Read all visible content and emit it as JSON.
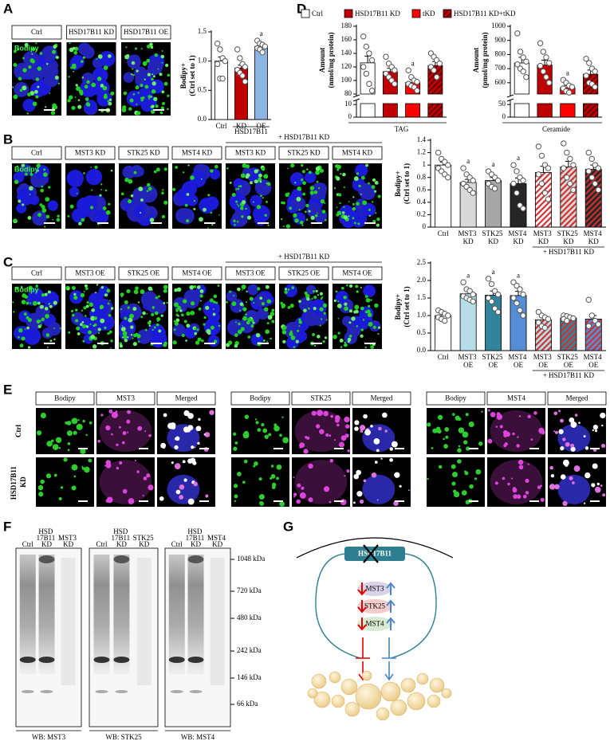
{
  "panels": {
    "A": {
      "label": "A",
      "image_headers": [
        "Ctrl",
        "HSD17B11 KD",
        "HSD17B11 OE"
      ],
      "stain": "Bodipy"
    },
    "B": {
      "label": "B",
      "image_headers": [
        "Ctrl",
        "MST3 KD",
        "STK25 KD",
        "MST4 KD",
        "MST3 KD",
        "STK25 KD",
        "MST4 KD"
      ],
      "group_label": "+ HSD17B11 KD",
      "stain": "Bodipy"
    },
    "C": {
      "label": "C",
      "image_headers": [
        "Ctrl",
        "MST3 OE",
        "STK25 OE",
        "MST4 OE",
        "MST3 OE",
        "STK25 OE",
        "MST4 OE"
      ],
      "group_label": "+ HSD17B11 KD",
      "stain": "Bodipy"
    },
    "D": {
      "label": "D",
      "legend": [
        {
          "name": "Ctrl",
          "color": "#ffffff"
        },
        {
          "name": "HSD17B11 KD",
          "color": "#c00000"
        },
        {
          "name": "tKD",
          "color": "#ff0000"
        },
        {
          "name": "HSD17B11 KD+tKD",
          "color": "#c00000",
          "hatch": true,
          "hatch_color": "#6b0000"
        }
      ]
    },
    "E": {
      "label": "E",
      "groups": [
        [
          "Bodipy",
          "MST3",
          "Merged"
        ],
        [
          "Bodipy",
          "STK25",
          "Merged"
        ],
        [
          "Bodipy",
          "MST4",
          "Merged"
        ]
      ],
      "rows": [
        "Ctrl",
        "HSD17B11 KD"
      ]
    },
    "F": {
      "label": "F",
      "lanes": [
        [
          "Ctrl",
          "HSD 17B11 KD",
          "MST3 KD"
        ],
        [
          "Ctrl",
          "HSD 17B11 KD",
          "STK25 KD"
        ],
        [
          "Ctrl",
          "HSD 17B11 KD",
          "MST4 KD"
        ]
      ],
      "markers": [
        "1048 kDa",
        "720 kDa",
        "480 kDa",
        "242 kDa",
        "146 kDa",
        "66 kDa"
      ],
      "blots": [
        "WB: MST3",
        "WB: STK25",
        "WB: MST4"
      ]
    },
    "G": {
      "label": "G",
      "nodes": [
        "HSD17B11",
        "MST3",
        "STK25",
        "MST4"
      ]
    }
  },
  "chart_data": [
    {
      "type": "bar",
      "ylabel": [
        "Bodipy+",
        "(Ctrl set to 1)"
      ],
      "categories": [
        "Ctrl",
        "KD",
        "OE"
      ],
      "group_label": "HSD17B11",
      "values": [
        1.0,
        0.88,
        1.25
      ],
      "errors": [
        0.07,
        0.05,
        0.03
      ],
      "colors": [
        "#ffffff",
        "#c00000",
        "#8eb4e3"
      ],
      "points": [
        [
          1.3,
          1.2,
          1.05,
          1.0,
          0.95,
          0.7,
          0.7
        ],
        [
          1.2,
          1.05,
          0.95,
          0.9,
          0.85,
          0.8,
          0.75,
          0.65
        ],
        [
          1.35,
          1.3,
          1.28,
          1.25,
          1.22,
          1.2,
          1.15
        ]
      ],
      "annotations": [
        null,
        null,
        "a"
      ],
      "ylim": [
        0,
        1.5
      ],
      "yticks": [
        {
          "value": 0,
          "label": "0.0"
        },
        0.5,
        {
          "value": 1,
          "label": "1.0"
        },
        1.5
      ]
    },
    {
      "type": "bar",
      "ylabel": [
        "Bodipy+",
        "(Ctrl set to 1)"
      ],
      "categories": [
        "Ctrl",
        "MST3 KD",
        "STK25 KD",
        "MST4 KD",
        "MST3 KD",
        "STK25 KD",
        "MST4 KD"
      ],
      "group_label": "+ HSD17B11 KD",
      "values": [
        1.0,
        0.72,
        0.75,
        0.7,
        0.88,
        0.97,
        0.93
      ],
      "errors": [
        0.05,
        0.05,
        0.05,
        0.09,
        0.1,
        0.09,
        0.07
      ],
      "colors": [
        "#ffffff",
        "#d9d9d9",
        "#a6a6a6",
        "#262626",
        "#ffffff",
        "#d9d9d9",
        "#262626"
      ],
      "hatch": [
        false,
        false,
        false,
        false,
        true,
        true,
        true
      ],
      "hatch_color": "#d03030",
      "points": [
        [
          1.2,
          1.1,
          1.05,
          1.0,
          0.95,
          0.9,
          0.85,
          0.8
        ],
        [
          0.95,
          0.85,
          0.8,
          0.75,
          0.7,
          0.65,
          0.6,
          0.55
        ],
        [
          0.9,
          0.85,
          0.8,
          0.75,
          0.7,
          0.65,
          0.62
        ],
        [
          1.0,
          0.9,
          0.8,
          0.75,
          0.7,
          0.55,
          0.35,
          0.3
        ],
        [
          1.3,
          1.15,
          1.0,
          0.95,
          0.85,
          0.7,
          0.55,
          0.45
        ],
        [
          1.35,
          1.2,
          1.1,
          1.0,
          0.95,
          0.8,
          0.7,
          0.6
        ],
        [
          1.2,
          1.1,
          1.0,
          0.95,
          0.9,
          0.8,
          0.7,
          0.6
        ]
      ],
      "annotations": [
        null,
        "a",
        "a",
        "a",
        null,
        null,
        null
      ],
      "ylim": [
        0,
        1.4
      ],
      "yticks": [
        0,
        0.2,
        0.4,
        0.6,
        0.8,
        1,
        1.2,
        1.4
      ]
    },
    {
      "type": "bar",
      "ylabel": [
        "Bodipy+",
        "(Ctrl set to 1)"
      ],
      "categories": [
        "Ctrl",
        "MST3 OE",
        "STK25 OE",
        "MST4 OE",
        "MST3 OE",
        "STK25 OE",
        "MST4 OE"
      ],
      "group_label": "+ HSD17B11 KD",
      "values": [
        1.0,
        1.62,
        1.58,
        1.57,
        0.88,
        0.93,
        0.9
      ],
      "errors": [
        0.04,
        0.08,
        0.12,
        0.12,
        0.06,
        0.03,
        0.1
      ],
      "colors": [
        "#ffffff",
        "#b7dee8",
        "#31849b",
        "#558ed5",
        "#b7dee8",
        "#31849b",
        "#558ed5"
      ],
      "hatch": [
        false,
        false,
        false,
        false,
        true,
        true,
        true
      ],
      "hatch_color": "#d03030",
      "points": [
        [
          1.15,
          1.1,
          1.05,
          1.0,
          0.95,
          0.9,
          0.85
        ],
        [
          1.95,
          1.75,
          1.7,
          1.6,
          1.55,
          1.5,
          1.45,
          1.4
        ],
        [
          2.05,
          1.9,
          1.7,
          1.6,
          1.5,
          1.4,
          1.2,
          1.1
        ],
        [
          1.95,
          1.85,
          1.75,
          1.6,
          1.5,
          1.35,
          1.15,
          1.0
        ],
        [
          1.1,
          1.0,
          0.95,
          0.9,
          0.8,
          0.7,
          0.65
        ],
        [
          1.0,
          0.98,
          0.95,
          0.92,
          0.9,
          0.85
        ],
        [
          1.45,
          1.0,
          0.85,
          0.75,
          0.7
        ]
      ],
      "annotations": [
        null,
        "a",
        "a",
        "a",
        null,
        null,
        null
      ],
      "ylim": [
        0,
        2.5
      ],
      "yticks": [
        {
          "value": 0,
          "label": "0.0"
        },
        0.5,
        {
          "value": 1,
          "label": "1.0"
        },
        1.5,
        {
          "value": 2,
          "label": "2.0"
        },
        2.5
      ]
    },
    {
      "type": "broken-bar",
      "xlabel": "TAG",
      "ylabel": [
        "Amount",
        "(nmol/mg protein)"
      ],
      "values": [
        126,
        113,
        97,
        122
      ],
      "errors": [
        10,
        5,
        4,
        6
      ],
      "points": [
        [
          165,
          150,
          140,
          130,
          120,
          110,
          95,
          85
        ],
        [
          135,
          125,
          120,
          115,
          110,
          105,
          100,
          95
        ],
        [
          115,
          105,
          100,
          98,
          95,
          92,
          90,
          85
        ],
        [
          140,
          135,
          130,
          125,
          120,
          115,
          105
        ]
      ],
      "annotations": [
        null,
        null,
        "a",
        null
      ],
      "ylim": [
        80,
        180
      ],
      "yticks": [
        80,
        100,
        120,
        140,
        160,
        180
      ],
      "ylim_low": [
        0,
        12
      ],
      "yticks_low": [
        0,
        10
      ]
    },
    {
      "type": "broken-bar",
      "xlabel": "Ceramide",
      "ylabel": [
        "Amount",
        "(pmol/mg protein)"
      ],
      "values": [
        740,
        725,
        565,
        660
      ],
      "errors": [
        40,
        35,
        15,
        30
      ],
      "points": [
        [
          950,
          820,
          780,
          750,
          730,
          700,
          680,
          640
        ],
        [
          880,
          820,
          780,
          740,
          720,
          680,
          640,
          600
        ],
        [
          620,
          600,
          580,
          570,
          560,
          540,
          530
        ],
        [
          770,
          740,
          700,
          680,
          650,
          600,
          590,
          570
        ]
      ],
      "annotations": [
        null,
        null,
        "a",
        null
      ],
      "ylim": [
        520,
        1000
      ],
      "yticks": [
        600,
        700,
        800,
        900,
        1000
      ],
      "ylim_low": [
        0,
        60
      ],
      "yticks_low": [
        0,
        50
      ]
    }
  ]
}
